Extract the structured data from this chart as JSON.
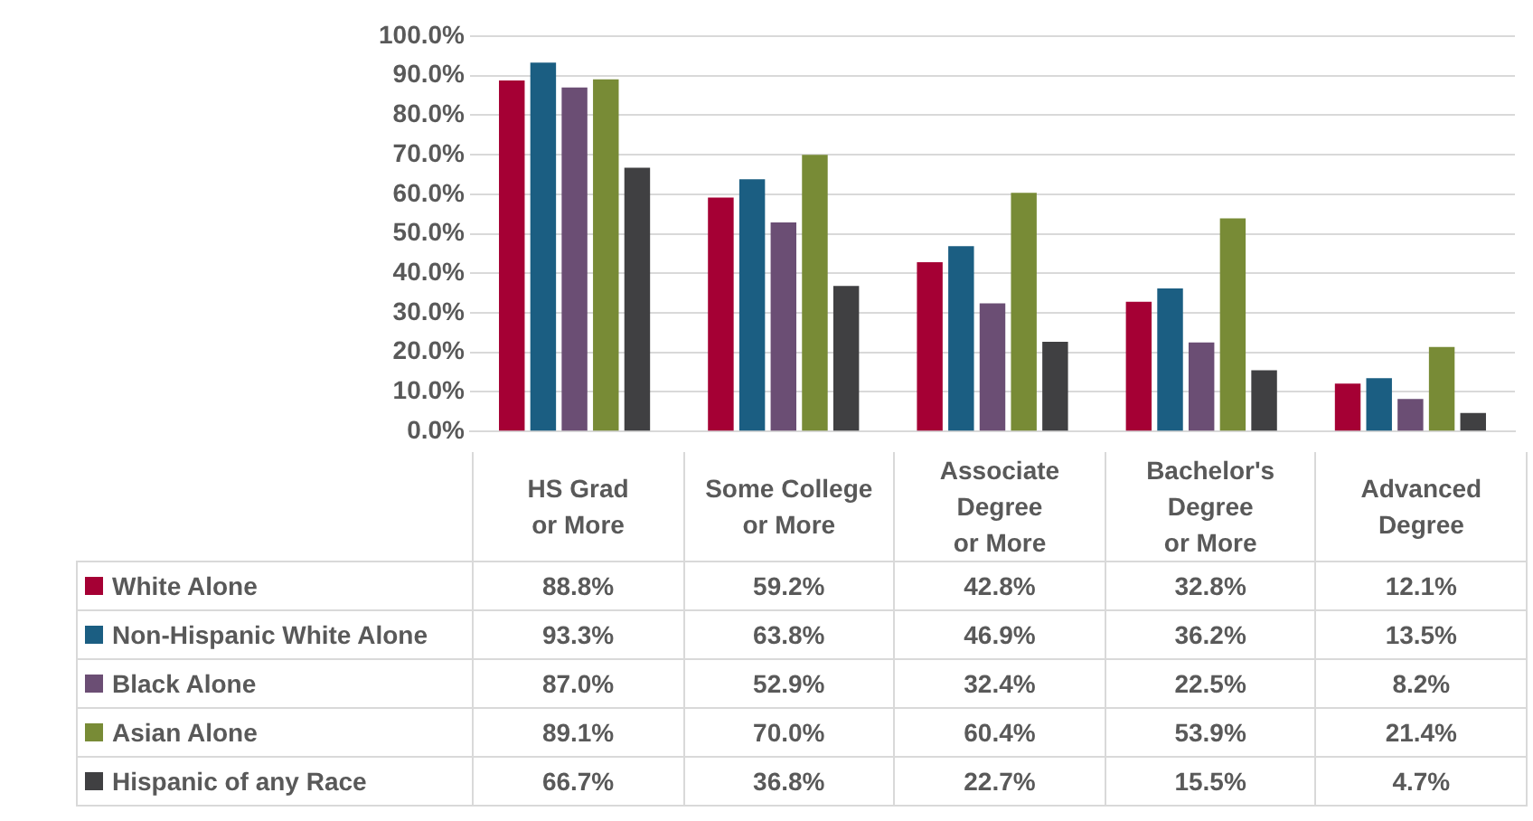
{
  "chart_data": {
    "type": "bar",
    "categories": [
      "HS Grad\nor More",
      "Some College\nor More",
      "Associate\nDegree\nor More",
      "Bachelor's\nDegree\nor More",
      "Advanced\nDegree"
    ],
    "series": [
      {
        "name": "White Alone",
        "color": "#a50034",
        "values": [
          88.8,
          59.2,
          42.8,
          32.8,
          12.1
        ],
        "value_labels": [
          "88.8%",
          "59.2%",
          "42.8%",
          "32.8%",
          "12.1%"
        ]
      },
      {
        "name": "Non-Hispanic White Alone",
        "color": "#1b5e82",
        "values": [
          93.3,
          63.8,
          46.9,
          36.2,
          13.5
        ],
        "value_labels": [
          "93.3%",
          "63.8%",
          "46.9%",
          "36.2%",
          "13.5%"
        ]
      },
      {
        "name": "Black Alone",
        "color": "#6b4e74",
        "values": [
          87.0,
          52.9,
          32.4,
          22.5,
          8.2
        ],
        "value_labels": [
          "87.0%",
          "52.9%",
          "32.4%",
          "22.5%",
          "8.2%"
        ]
      },
      {
        "name": "Asian Alone",
        "color": "#788b36",
        "values": [
          89.1,
          70.0,
          60.4,
          53.9,
          21.4
        ],
        "value_labels": [
          "89.1%",
          "70.0%",
          "60.4%",
          "53.9%",
          "21.4%"
        ]
      },
      {
        "name": "Hispanic of any Race",
        "color": "#404042",
        "values": [
          66.7,
          36.8,
          22.7,
          15.5,
          4.7
        ],
        "value_labels": [
          "66.7%",
          "36.8%",
          "22.7%",
          "15.5%",
          "4.7%"
        ]
      }
    ],
    "ylim": [
      0,
      100
    ],
    "yticks": [
      {
        "value": 0,
        "label": "0.0%"
      },
      {
        "value": 10,
        "label": "10.0%"
      },
      {
        "value": 20,
        "label": "20.0%"
      },
      {
        "value": 30,
        "label": "30.0%"
      },
      {
        "value": 40,
        "label": "40.0%"
      },
      {
        "value": 50,
        "label": "50.0%"
      },
      {
        "value": 60,
        "label": "60.0%"
      },
      {
        "value": 70,
        "label": "70.0%"
      },
      {
        "value": 80,
        "label": "80.0%"
      },
      {
        "value": 90,
        "label": "90.0%"
      },
      {
        "value": 100,
        "label": "100.0%"
      }
    ],
    "grid": "y",
    "legend": "bottom"
  }
}
